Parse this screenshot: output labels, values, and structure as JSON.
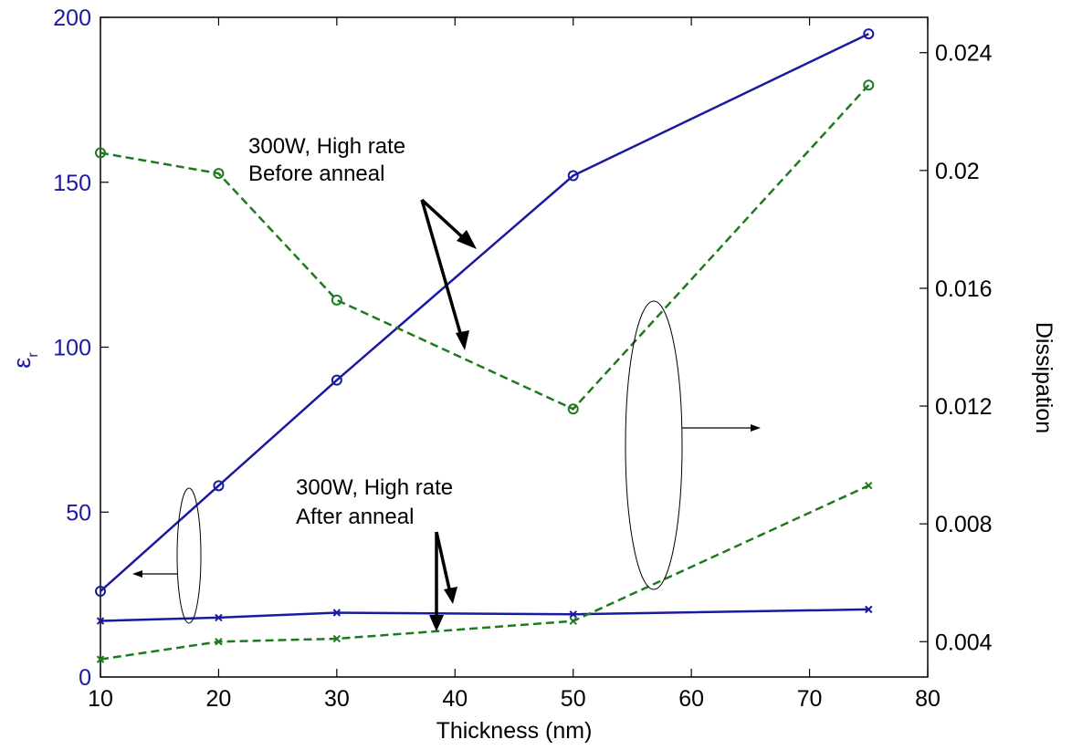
{
  "chart_data": {
    "type": "line",
    "xlabel": "Thickness (nm)",
    "ylabel_left_main": "ε",
    "ylabel_left_sub": "r",
    "ylabel_right": "Dissipation",
    "xlim": [
      10,
      80
    ],
    "ylim_left": [
      0,
      200
    ],
    "ylim_right": [
      0.0028,
      0.0252
    ],
    "x_ticks": [
      "10",
      "20",
      "30",
      "40",
      "50",
      "60",
      "70",
      "80"
    ],
    "y_left_ticks": [
      "0",
      "50",
      "100",
      "150",
      "200"
    ],
    "y_right_ticks": [
      "0.004",
      "0.008",
      "0.012",
      "0.016",
      "0.02",
      "0.024"
    ],
    "x": [
      10,
      20,
      30,
      50,
      75
    ],
    "series": [
      {
        "axis": "left",
        "color": "#1a1aa0",
        "dash": "solid",
        "marker": "circle",
        "values": [
          26,
          58,
          90,
          152,
          195
        ]
      },
      {
        "axis": "left",
        "color": "#1a1aa0",
        "dash": "solid",
        "marker": "x",
        "values": [
          17,
          18,
          19.5,
          19,
          20.5
        ]
      },
      {
        "axis": "right",
        "color": "#1f7a1f",
        "dash": "dashed",
        "marker": "circle",
        "values": [
          0.0206,
          0.0199,
          0.0156,
          0.0119,
          0.0229
        ]
      },
      {
        "axis": "right",
        "color": "#1f7a1f",
        "dash": "dashed",
        "marker": "x",
        "values": [
          0.0034,
          0.004,
          0.0041,
          0.0047,
          0.0093
        ]
      }
    ],
    "annotations": [
      {
        "lines": [
          "300W, High rate",
          "Before anneal"
        ]
      },
      {
        "lines": [
          "300W, High rate",
          "After anneal"
        ]
      }
    ],
    "grid": false,
    "legend": "none"
  }
}
